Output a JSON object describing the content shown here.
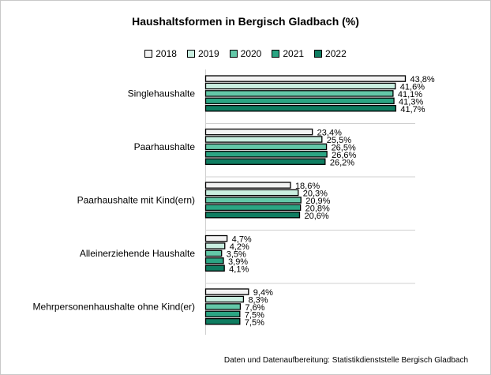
{
  "chart_data": {
    "type": "bar",
    "orientation": "horizontal",
    "title": "Haushaltsformen in Bergisch Gladbach (%)",
    "categories": [
      "Singlehaushalte",
      "Paarhaushalte",
      "Paarhaushalte mit Kind(ern)",
      "Alleinerziehende Haushalte",
      "Mehrpersonenhaushalte ohne Kind(er)"
    ],
    "series": [
      {
        "name": "2018",
        "color": "#f2f2f2",
        "values": [
          43.8,
          23.4,
          18.6,
          4.7,
          9.4
        ],
        "labels": [
          "43,8%",
          "23,4%",
          "18,6%",
          "4,7%",
          "9,4%"
        ]
      },
      {
        "name": "2019",
        "color": "#c9eee0",
        "values": [
          41.6,
          25.5,
          20.3,
          4.2,
          8.3
        ],
        "labels": [
          "41,6%",
          "25,5%",
          "20,3%",
          "4,2%",
          "8,3%"
        ]
      },
      {
        "name": "2020",
        "color": "#63c8a8",
        "values": [
          41.1,
          26.5,
          20.9,
          3.5,
          7.6
        ],
        "labels": [
          "41,1%",
          "26,5%",
          "20,9%",
          "3,5%",
          "7,6%"
        ]
      },
      {
        "name": "2021",
        "color": "#2ba583",
        "values": [
          41.3,
          26.6,
          20.8,
          3.9,
          7.5
        ],
        "labels": [
          "41,3%",
          "26,6%",
          "20,8%",
          "3,9%",
          "7,5%"
        ]
      },
      {
        "name": "2022",
        "color": "#0f7d61",
        "values": [
          41.7,
          26.2,
          20.6,
          4.1,
          7.5
        ],
        "labels": [
          "41,7%",
          "26,2%",
          "20,6%",
          "4,1%",
          "7,5%"
        ]
      }
    ],
    "xlim": [
      0,
      50
    ],
    "grid": false,
    "legend_position": "top"
  },
  "source_note": "Daten und Datenaufbereitung: Statistikdienststelle Bergisch Gladbach"
}
